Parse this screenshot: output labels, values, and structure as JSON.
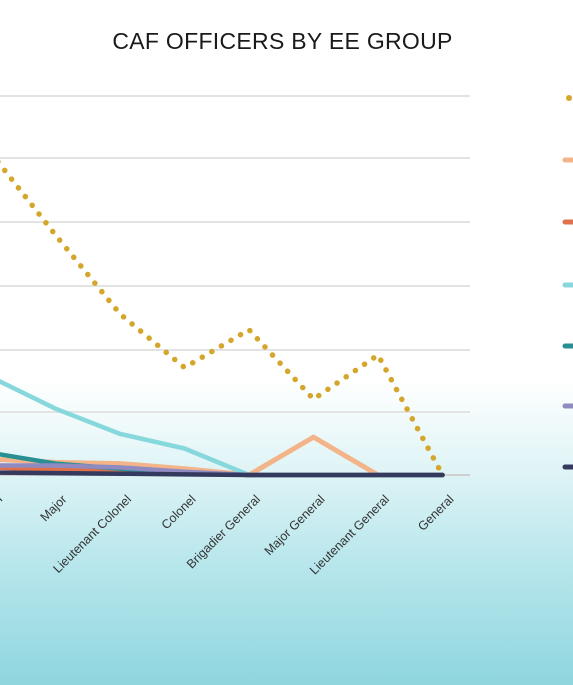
{
  "chart_data": {
    "type": "line",
    "title": "CAF OFFICERS BY EE GROUP",
    "xlabel": "",
    "ylabel": "",
    "x": [
      "Captain",
      "Major",
      "Lieutenant Colonel",
      "Colonel",
      "Brigadier General",
      "Major General",
      "Lieutenant General",
      "General"
    ],
    "x_visible_labels": [
      "ain",
      "Major",
      "Lieutenant Colonel",
      "Colonel",
      "Brigadier General",
      "Major General",
      "Lieutenant General",
      "General"
    ],
    "ylim": [
      0,
      7
    ],
    "grid": true,
    "legend": "right",
    "series": [
      {
        "color": "#d4a72c",
        "style": "dotted",
        "values": [
          5.1,
          3.8,
          2.55,
          1.7,
          2.3,
          1.2,
          1.9,
          0.0
        ]
      },
      {
        "color": "#f3b48a",
        "style": "solid",
        "values": [
          0.25,
          0.2,
          0.18,
          0.1,
          0.0,
          0.6,
          0.0,
          0.0
        ]
      },
      {
        "color": "#e0704a",
        "style": "solid",
        "values": [
          0.12,
          0.08,
          0.06,
          0.04,
          0.0,
          0.0,
          0.0,
          0.0
        ]
      },
      {
        "color": "#86d8dc",
        "style": "solid",
        "values": [
          1.55,
          1.05,
          0.65,
          0.42,
          0.0,
          0.0,
          0.0,
          0.0
        ]
      },
      {
        "color": "#2a8f93",
        "style": "solid",
        "values": [
          0.35,
          0.18,
          0.1,
          0.04,
          0.0,
          0.0,
          0.0,
          0.0
        ]
      },
      {
        "color": "#8f8ac0",
        "style": "solid",
        "values": [
          0.15,
          0.15,
          0.12,
          0.05,
          0.0,
          0.0,
          0.0,
          0.0
        ]
      },
      {
        "color": "#333a5e",
        "style": "solid",
        "values": [
          0.04,
          0.03,
          0.02,
          0.01,
          0.0,
          0.0,
          0.0,
          0.0
        ]
      }
    ]
  }
}
